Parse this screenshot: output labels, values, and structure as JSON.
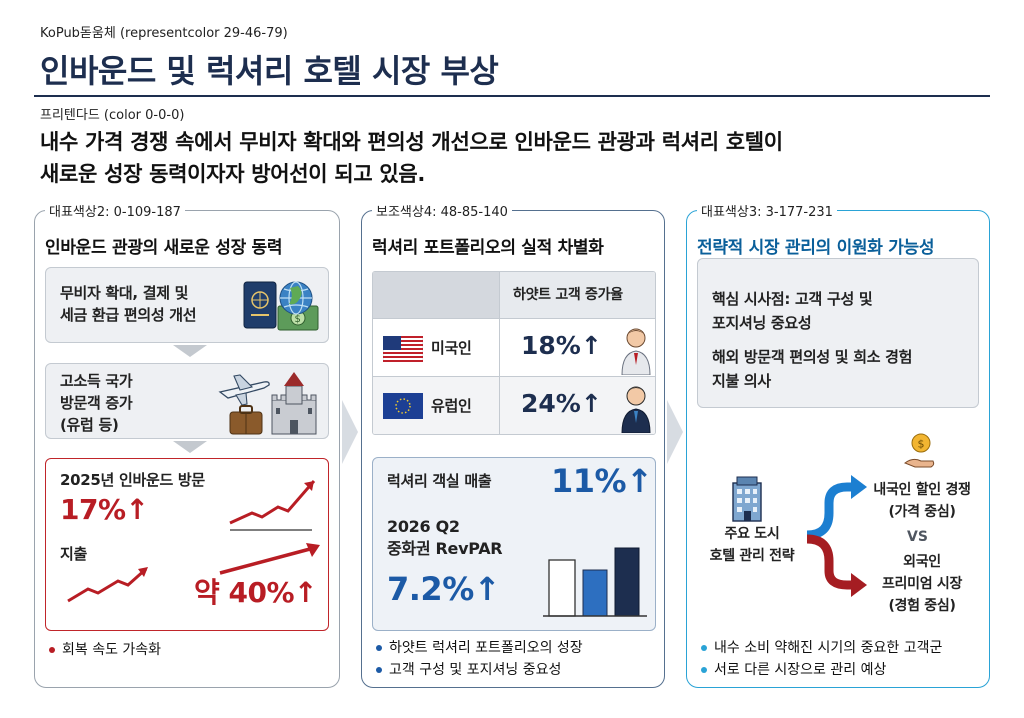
{
  "header": {
    "font_caption": "KoPub돋움체 (representcolor 29-46-79)",
    "title": "인바운드 및 럭셔리 호텔 시장 부상",
    "body_caption": "프리텐다드 (color 0-0-0)",
    "lead_line1": "내수 가격 경쟁 속에서 무비자 확대와 편의성 개선으로 인바운드 관광과 럭셔리 호텔이",
    "lead_line2": "새로운 성장 동력이자자 방어선이 되고 있음."
  },
  "panel1": {
    "caption": "대표색상2: 0-109-187",
    "title": "인바운드 관광의 새로운 성장 동력",
    "box1_line1": "무비자 확대, 결제 및",
    "box1_line2": "세금 환급 편의성 개선",
    "box2_line1": "고소득 국가",
    "box2_line2": "방문객 증가",
    "box2_line3": "(유럽 등)",
    "stat1_label": "2025년 인바운드 방문",
    "stat1_value": "17%",
    "stat2_label": "지출",
    "stat2_value": "약 40%",
    "bullets": [
      "회복 속도 가속화"
    ],
    "accent_color": "#b81d24",
    "icons": [
      "passport-icon",
      "globe-icon",
      "money-icon",
      "airplane-icon",
      "suitcase-icon",
      "castle-icon",
      "trend-up-icon"
    ]
  },
  "panel2": {
    "caption": "보조색상4: 48-85-140",
    "title": "럭셔리 포트폴리오의 실적 차별화",
    "table_header": "하얏트 고객 증가율",
    "rows": [
      {
        "label": "미국인",
        "value": "18%",
        "flag": "us-flag-icon"
      },
      {
        "label": "유럽인",
        "value": "24%",
        "flag": "eu-flag-icon"
      }
    ],
    "room_sales_label": "럭셔리 객실 매출",
    "room_sales_value": "11%",
    "revpar_label_line1": "2026 Q2",
    "revpar_label_line2": "중화권 RevPAR",
    "revpar_value": "7.2%",
    "bullets": [
      "하얏트 럭셔리 포트폴리오의 성장",
      "고객 구성 및 포지셔닝 중요성"
    ],
    "accent_color": "#1c5aa6",
    "icons": [
      "person-icon",
      "bar-chart-icon",
      "up-arrow-icon"
    ]
  },
  "panel3": {
    "caption": "대표색상3: 3-177-231",
    "title": "전략적 시장 관리의 이원화 가능성",
    "box_line1": "핵심 시사점: 고객 구성 및",
    "box_line2": "포지셔닝 중요성",
    "box_line3": "해외 방문객 편의성 및 희소 경험",
    "box_line4": "지불 의사",
    "center_line1": "주요 도시",
    "center_line2": "호텔 관리 전략",
    "top_branch_line1": "내국인 할인 경쟁",
    "top_branch_line2": "(가격 중심)",
    "vs": "VS",
    "bottom_branch_line1": "외국인",
    "bottom_branch_line2": "프리미엄 시장",
    "bottom_branch_line3": "(경험 중심)",
    "bullets": [
      "내수 소비 약해진 시기의 중요한 고객군",
      "서로 다른 시장으로 관리 예상"
    ],
    "accent_color": "#0a5f9a",
    "icons": [
      "building-icon",
      "coin-hand-icon",
      "split-arrow-icon"
    ]
  }
}
